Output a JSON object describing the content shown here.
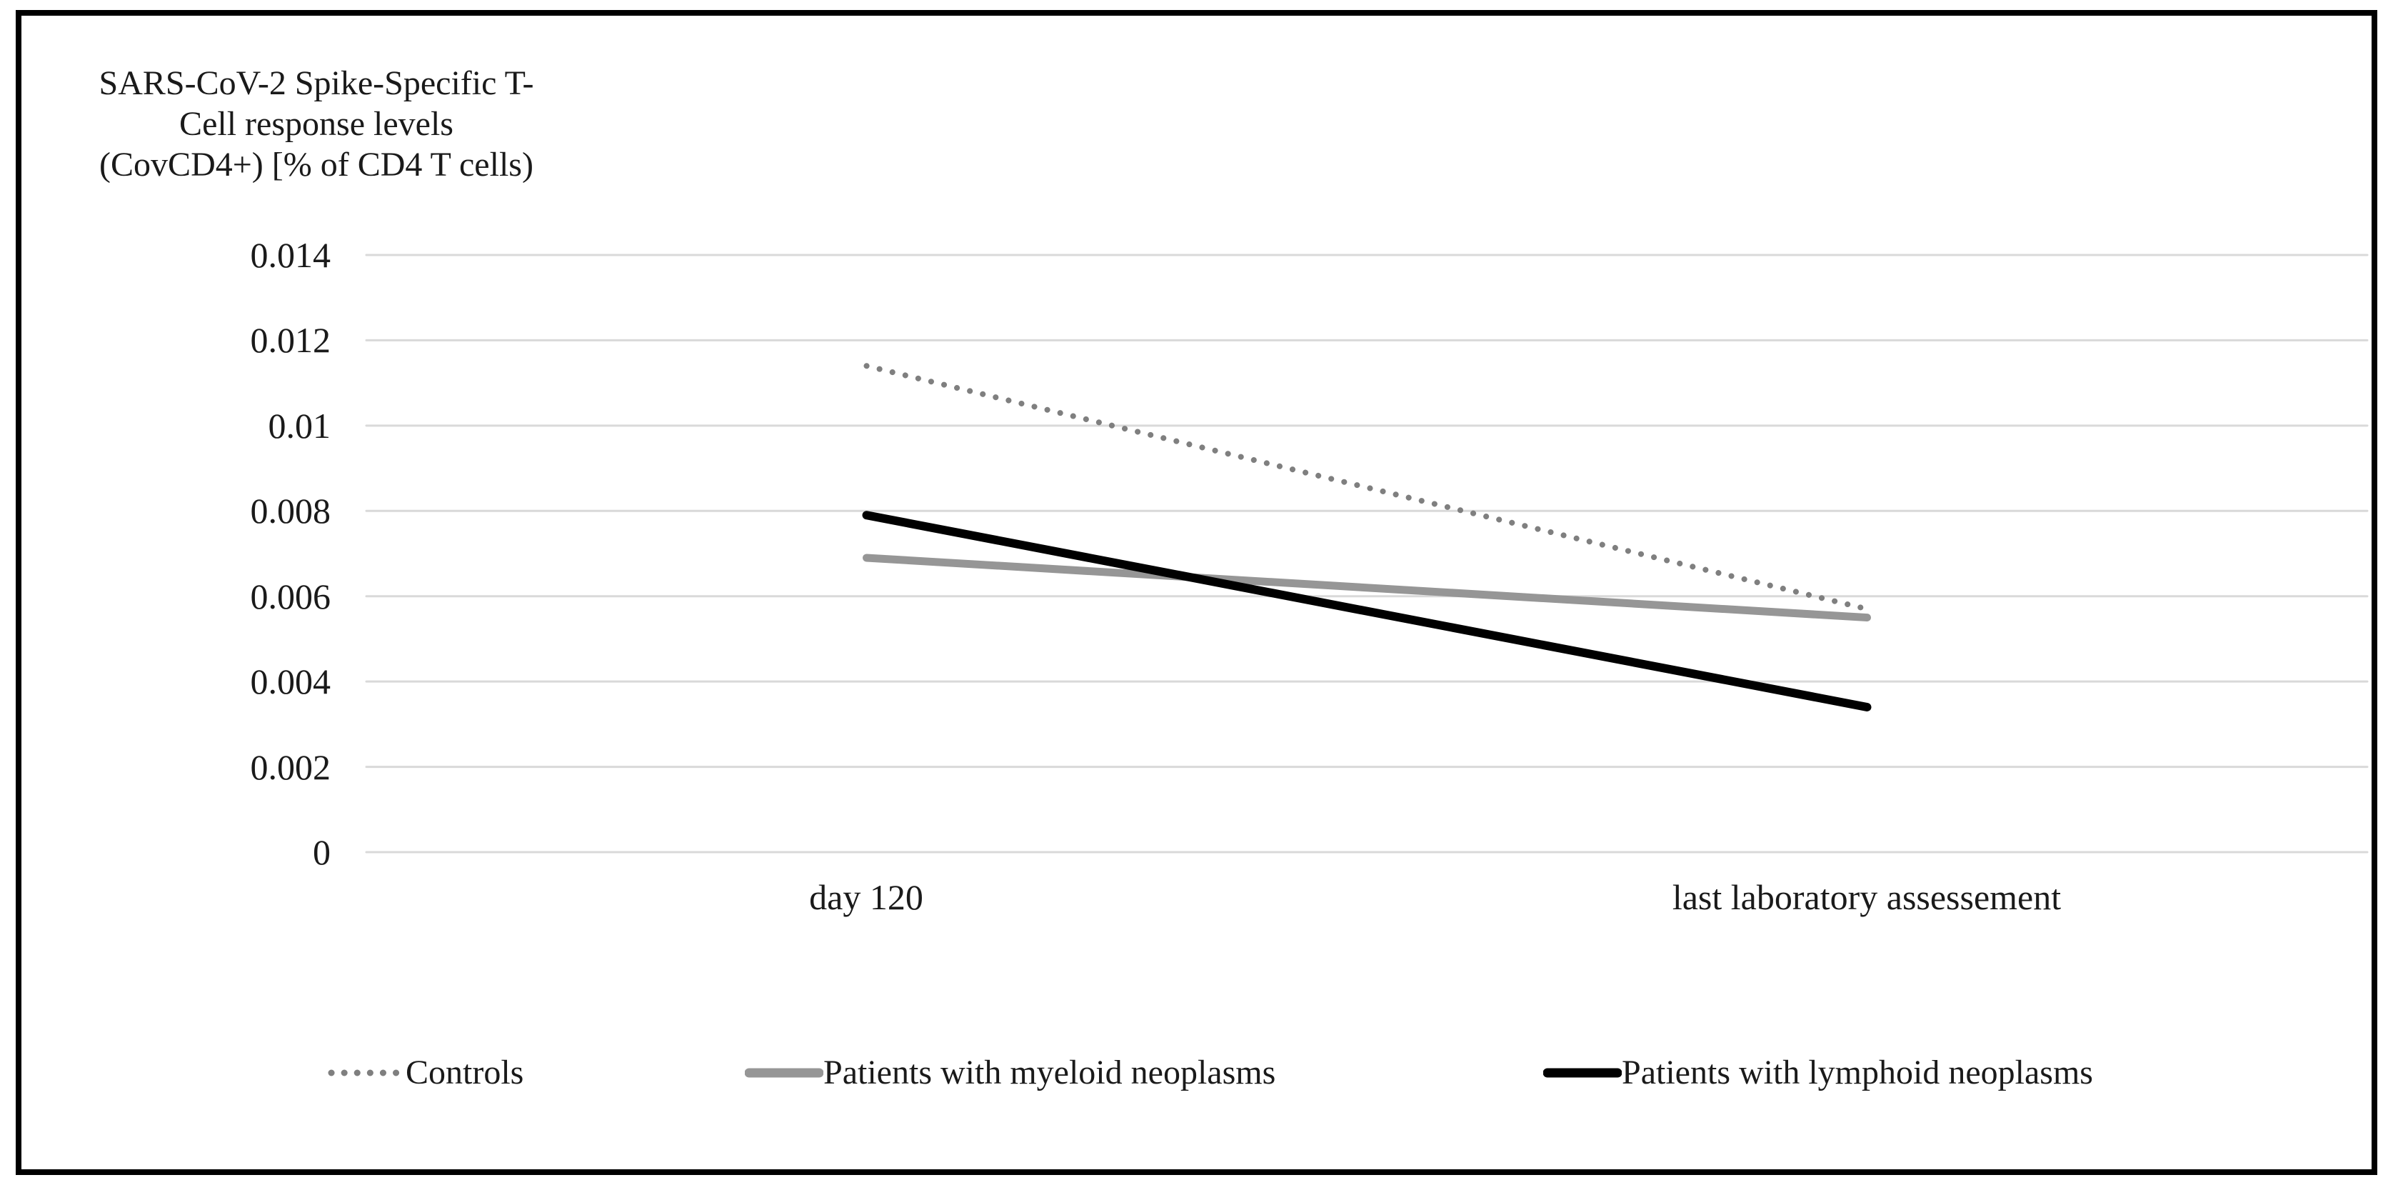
{
  "figure": {
    "background_color": "#ffffff",
    "frame_border_color": "#000000"
  },
  "chart_data": {
    "type": "line",
    "title": "SARS-CoV-2 Spike-Specific T-Cell response levels (CovCD4+) [% of CD4 T cells)",
    "title_lines": [
      "SARS-CoV-2 Spike-Specific T-",
      "Cell response levels",
      "(CovCD4+) [% of CD4 T cells)"
    ],
    "xlabel": "",
    "ylabel": "SARS-CoV-2 Spike-Specific T-Cell response levels (CovCD4+) [% of CD4 T cells)",
    "categories": [
      "day 120",
      "last laboratory assessement"
    ],
    "series": [
      {
        "name": "Controls",
        "values": [
          0.0114,
          0.0057
        ],
        "color": "#7f7f7f",
        "line_style": "dotted",
        "stroke_width": 8
      },
      {
        "name": "Patients with myeloid neoplasms",
        "values": [
          0.0069,
          0.0055
        ],
        "color": "#969696",
        "line_style": "solid",
        "stroke_width": 11
      },
      {
        "name": "Patients with lymphoid neoplasms",
        "values": [
          0.0079,
          0.0034
        ],
        "color": "#000000",
        "line_style": "solid",
        "stroke_width": 12
      }
    ],
    "ylim": [
      0,
      0.014
    ],
    "ytick_labels": [
      "0.014",
      "0.012",
      "0.01",
      "0.008",
      "0.006",
      "0.004",
      "0.002",
      "0"
    ],
    "ytick_values": [
      0.014,
      0.012,
      0.01,
      0.008,
      0.006,
      0.004,
      0.002,
      0
    ],
    "grid": true,
    "gridline_color": "#d9d9d9",
    "legend_position": "bottom"
  }
}
